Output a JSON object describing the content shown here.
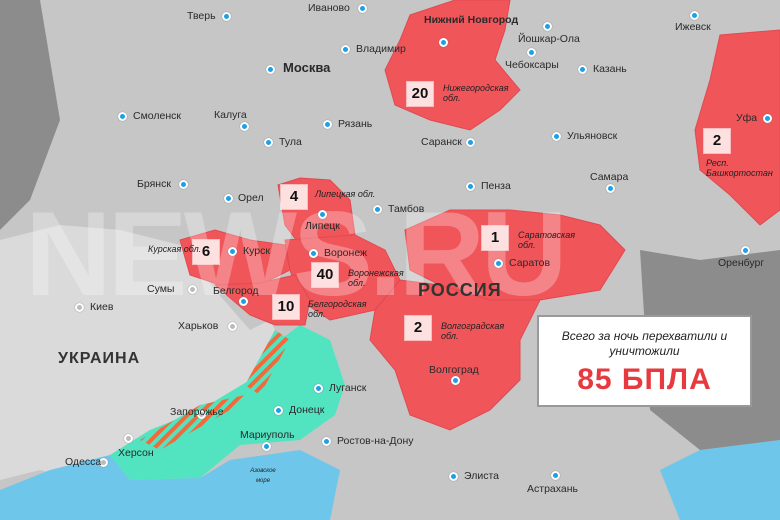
{
  "colors": {
    "land": "#c6c6c6",
    "ukraine": "#d9d9d9",
    "attacked": "#f0555a",
    "occupied": "#52e3c0",
    "sea": "#6ec6ea",
    "dot": "#1ea0e6"
  },
  "countries": {
    "ukraine": "УКРАИНА",
    "russia": "РОССИЯ"
  },
  "sea": "Азовское море",
  "watermark": "NEWS.RU",
  "callout": {
    "text": "Всего за ночь перехватили и уничтожили",
    "total": "85 БПЛА"
  },
  "regions": [
    {
      "name": "Нижегородская обл.",
      "count": "20"
    },
    {
      "name": "Респ. Башкортостан",
      "count": "2"
    },
    {
      "name": "Липецкая обл.",
      "count": "4"
    },
    {
      "name": "Курская обл.",
      "count": "6"
    },
    {
      "name": "Воронежская обл.",
      "count": "40"
    },
    {
      "name": "Белгородская обл.",
      "count": "10"
    },
    {
      "name": "Саратовская обл.",
      "count": "1"
    },
    {
      "name": "Волгоградская обл.",
      "count": "2"
    }
  ],
  "cities": [
    "Тверь",
    "Иваново",
    "Владимир",
    "Москва",
    "Нижний Новгород",
    "Йошкар-Ола",
    "Чебоксары",
    "Казань",
    "Ижевск",
    "Смоленск",
    "Калуга",
    "Тула",
    "Рязань",
    "Саранск",
    "Ульяновск",
    "Уфа",
    "Брянск",
    "Орел",
    "Пенза",
    "Самара",
    "Тамбов",
    "Липецк",
    "Курск",
    "Воронеж",
    "Саратов",
    "Оренбург",
    "Сумы",
    "Белгород",
    "Киев",
    "Харьков",
    "Луганск",
    "Волгоград",
    "Запорожье",
    "Донецк",
    "Мариуполь",
    "Ростов-на-Дону",
    "Херсон",
    "Одесса",
    "Элиста",
    "Астрахань"
  ]
}
